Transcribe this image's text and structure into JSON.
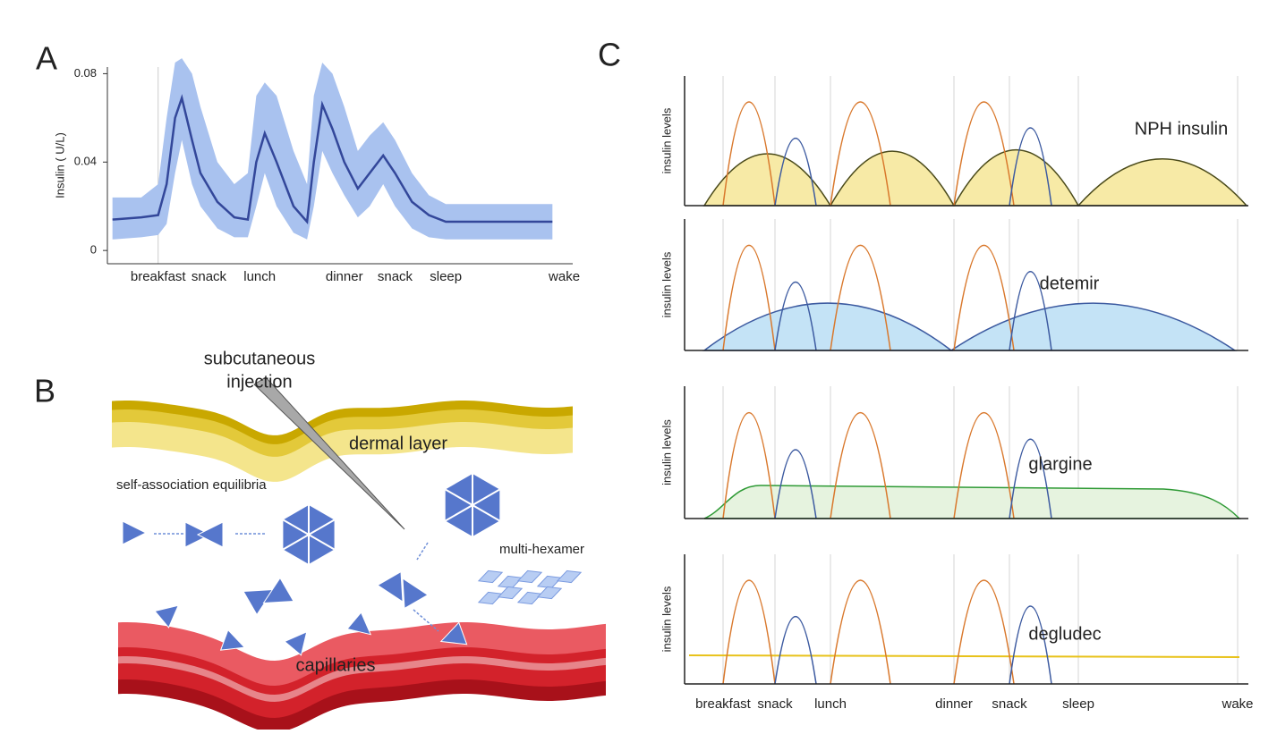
{
  "panels": {
    "a": "A",
    "b": "B",
    "c": "C"
  },
  "chart_data": {
    "type": "line",
    "ylabel": "Insulin ( U/L)",
    "color": "#33479a",
    "band_color": "#a9c2ef",
    "x": [
      4.3,
      6,
      7,
      7.5,
      8,
      8.4,
      9,
      9.5,
      10.5,
      11.5,
      12.3,
      12.8,
      13.3,
      14,
      15,
      15.8,
      16.2,
      16.7,
      17.3,
      18,
      18.8,
      19.5,
      20.3,
      21,
      22,
      23,
      24,
      26,
      30.3
    ],
    "values": [
      0.014,
      0.015,
      0.016,
      0.03,
      0.06,
      0.069,
      0.05,
      0.035,
      0.022,
      0.015,
      0.014,
      0.04,
      0.053,
      0.04,
      0.02,
      0.013,
      0.04,
      0.066,
      0.055,
      0.04,
      0.028,
      0.035,
      0.043,
      0.035,
      0.022,
      0.016,
      0.013,
      0.013,
      0.013
    ],
    "lower": [
      0.005,
      0.006,
      0.007,
      0.012,
      0.035,
      0.05,
      0.03,
      0.02,
      0.01,
      0.006,
      0.006,
      0.02,
      0.035,
      0.02,
      0.008,
      0.005,
      0.02,
      0.045,
      0.035,
      0.025,
      0.015,
      0.02,
      0.03,
      0.02,
      0.01,
      0.006,
      0.005,
      0.005,
      0.005
    ],
    "upper": [
      0.024,
      0.024,
      0.03,
      0.06,
      0.085,
      0.087,
      0.08,
      0.065,
      0.04,
      0.03,
      0.035,
      0.07,
      0.076,
      0.07,
      0.045,
      0.03,
      0.07,
      0.085,
      0.08,
      0.065,
      0.045,
      0.052,
      0.058,
      0.05,
      0.035,
      0.025,
      0.021,
      0.021,
      0.021
    ],
    "xlim": [
      4,
      31.5
    ],
    "ylim": [
      -0.006,
      0.083
    ],
    "xticks": [
      {
        "value": 7,
        "label": "breakfast"
      },
      {
        "value": 10,
        "label": "snack"
      },
      {
        "value": 13,
        "label": "lunch"
      },
      {
        "value": 18,
        "label": "dinner"
      },
      {
        "value": 21,
        "label": "snack"
      },
      {
        "value": 24,
        "label": "sleep"
      },
      {
        "value": 31,
        "label": "wake"
      }
    ],
    "yticks": [
      0,
      0.04,
      0.08
    ]
  },
  "diagram": {
    "injection": [
      "subcutaneous",
      "injection"
    ],
    "dermal": "dermal layer",
    "equilibria": "self-association equilibria",
    "multihexamer": "multi-hexamer",
    "capillaries": "capillaries"
  },
  "panel_c": {
    "ylabel": "insulin levels",
    "insulins": [
      "NPH insulin",
      "detemir",
      "glargine",
      "degludec"
    ],
    "xlabels": [
      "breakfast",
      "snack",
      "lunch",
      "dinner",
      "snack",
      "sleep",
      "wake"
    ]
  }
}
